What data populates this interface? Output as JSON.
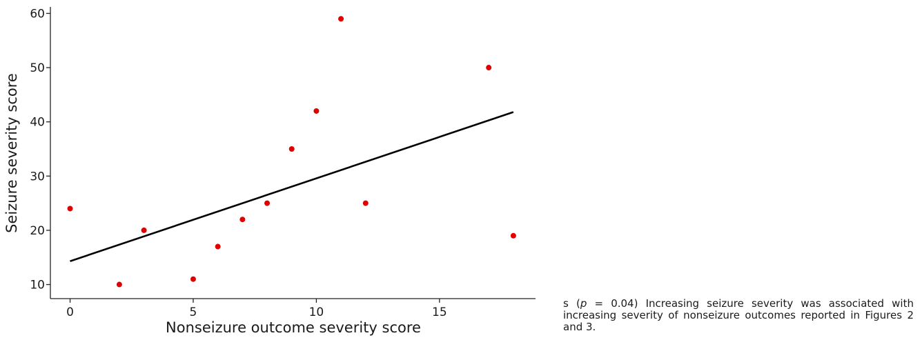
{
  "chart_data": {
    "type": "scatter",
    "title": "",
    "xlabel": "Nonseizure outcome severity score",
    "ylabel": "Seizure severity score",
    "xlim": [
      -0.8,
      18.9
    ],
    "ylim": [
      7.4,
      61.2
    ],
    "xticks": [
      0,
      5,
      10,
      15
    ],
    "yticks": [
      10,
      20,
      30,
      40,
      50,
      60
    ],
    "grid": false,
    "legend": "none",
    "point_color": "#e00000",
    "line_color": "#000000",
    "points": [
      {
        "x": 0,
        "y": 24
      },
      {
        "x": 2,
        "y": 10
      },
      {
        "x": 3,
        "y": 20
      },
      {
        "x": 5,
        "y": 11
      },
      {
        "x": 6,
        "y": 17
      },
      {
        "x": 7,
        "y": 22
      },
      {
        "x": 8,
        "y": 25
      },
      {
        "x": 9,
        "y": 35
      },
      {
        "x": 10,
        "y": 42
      },
      {
        "x": 11,
        "y": 59
      },
      {
        "x": 12,
        "y": 25
      },
      {
        "x": 17,
        "y": 50
      },
      {
        "x": 18,
        "y": 19
      }
    ],
    "trendline": {
      "x": [
        0,
        18
      ],
      "y": [
        14.3,
        41.8
      ]
    }
  },
  "caption": {
    "prefix": "s (",
    "p_symbol": "p",
    "p_value": " = 0.04) Increasing seizure severity was associated with increasing severity of nonseizure outcomes reported in Figures 2 and 3."
  }
}
